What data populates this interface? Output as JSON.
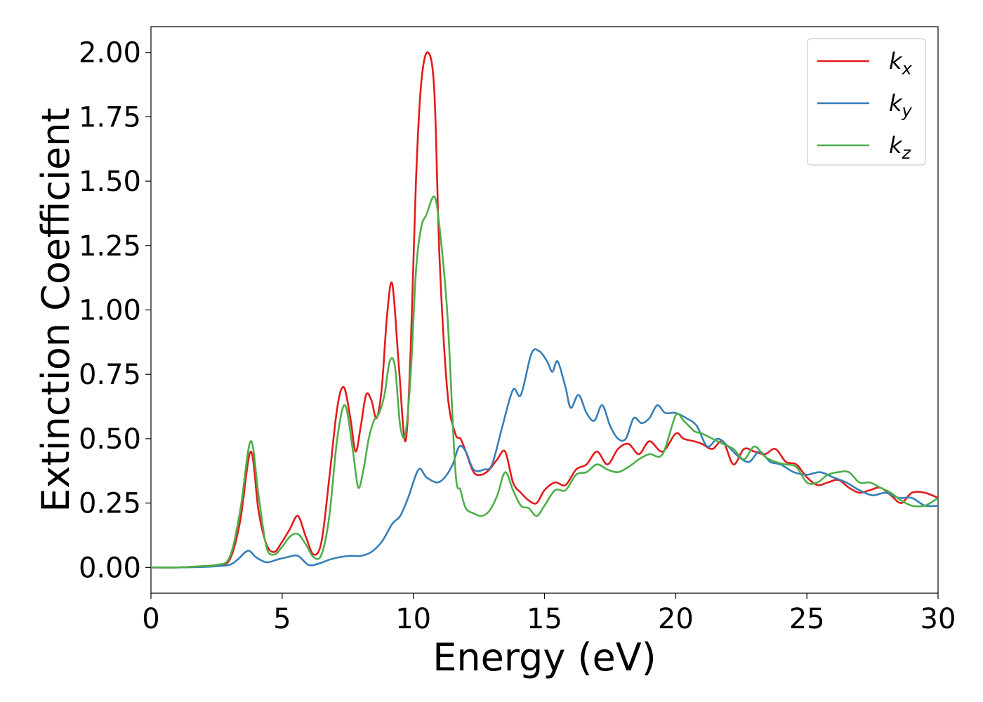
{
  "chart_data": {
    "type": "line",
    "title": "",
    "xlabel": "Energy (eV)",
    "ylabel": "Extinction Coefficient",
    "xlim": [
      0,
      30
    ],
    "ylim": [
      -0.1,
      2.1
    ],
    "xticks": [
      0,
      5,
      10,
      15,
      20,
      25,
      30
    ],
    "xtick_labels": [
      "0",
      "5",
      "10",
      "15",
      "20",
      "25",
      "30"
    ],
    "yticks": [
      0.0,
      0.25,
      0.5,
      0.75,
      1.0,
      1.25,
      1.5,
      1.75,
      2.0
    ],
    "ytick_labels": [
      "0.00",
      "0.25",
      "0.50",
      "0.75",
      "1.00",
      "1.25",
      "1.50",
      "1.75",
      "2.00"
    ],
    "grid": false,
    "legend_position": "top-right",
    "series": [
      {
        "name": "k",
        "subscript": "x",
        "color": "#e41a1c",
        "x": [
          0,
          1,
          2,
          2.5,
          3.0,
          3.4,
          3.8,
          4.1,
          4.4,
          4.7,
          5.0,
          5.3,
          5.6,
          5.9,
          6.2,
          6.5,
          6.8,
          7.1,
          7.35,
          7.6,
          7.8,
          8.0,
          8.2,
          8.4,
          8.6,
          8.8,
          9.0,
          9.2,
          9.45,
          9.7,
          9.9,
          10.1,
          10.3,
          10.55,
          10.8,
          11.0,
          11.3,
          11.6,
          11.8,
          12.0,
          12.3,
          12.6,
          12.9,
          13.2,
          13.5,
          13.8,
          14.1,
          14.4,
          14.7,
          15.0,
          15.4,
          15.8,
          16.2,
          16.6,
          17.0,
          17.4,
          17.8,
          18.2,
          18.6,
          19.0,
          19.5,
          20.0,
          20.3,
          20.7,
          21.0,
          21.4,
          21.8,
          22.2,
          22.6,
          23.0,
          23.4,
          23.8,
          24.2,
          24.6,
          25.0,
          25.4,
          25.8,
          26.2,
          26.6,
          27.0,
          27.4,
          27.8,
          28.2,
          28.6,
          29.0,
          29.5,
          30.0
        ],
        "y": [
          0.0,
          0.0,
          0.005,
          0.01,
          0.03,
          0.18,
          0.45,
          0.22,
          0.09,
          0.06,
          0.1,
          0.15,
          0.2,
          0.12,
          0.05,
          0.1,
          0.35,
          0.62,
          0.7,
          0.58,
          0.45,
          0.55,
          0.67,
          0.65,
          0.58,
          0.7,
          0.98,
          1.1,
          0.78,
          0.49,
          0.85,
          1.5,
          1.88,
          2.0,
          1.85,
          1.2,
          0.68,
          0.52,
          0.5,
          0.45,
          0.37,
          0.36,
          0.38,
          0.42,
          0.45,
          0.33,
          0.29,
          0.26,
          0.25,
          0.3,
          0.33,
          0.32,
          0.38,
          0.4,
          0.45,
          0.4,
          0.46,
          0.48,
          0.44,
          0.49,
          0.45,
          0.52,
          0.5,
          0.49,
          0.48,
          0.46,
          0.49,
          0.4,
          0.46,
          0.45,
          0.44,
          0.46,
          0.41,
          0.4,
          0.35,
          0.32,
          0.33,
          0.34,
          0.31,
          0.29,
          0.3,
          0.31,
          0.28,
          0.25,
          0.29,
          0.29,
          0.27
        ]
      },
      {
        "name": "k",
        "subscript": "y",
        "color": "#377eb8",
        "x": [
          0,
          1,
          2,
          2.5,
          3.0,
          3.3,
          3.7,
          4.0,
          4.4,
          4.8,
          5.2,
          5.6,
          6.0,
          6.4,
          6.8,
          7.2,
          7.6,
          8.0,
          8.4,
          8.8,
          9.2,
          9.5,
          9.8,
          10.2,
          10.5,
          10.9,
          11.2,
          11.5,
          11.75,
          12.0,
          12.3,
          12.7,
          13.0,
          13.4,
          13.8,
          14.1,
          14.5,
          14.8,
          15.1,
          15.3,
          15.5,
          15.8,
          16.0,
          16.3,
          16.6,
          16.9,
          17.2,
          17.5,
          17.8,
          18.1,
          18.4,
          18.7,
          19.0,
          19.3,
          19.6,
          20.0,
          20.4,
          20.8,
          21.2,
          21.6,
          22.0,
          22.4,
          22.8,
          23.2,
          23.6,
          24.0,
          24.5,
          25.0,
          25.5,
          26.0,
          26.5,
          27.0,
          27.5,
          28.0,
          28.5,
          29.0,
          29.5,
          30.0
        ],
        "y": [
          0.0,
          0.0,
          0.002,
          0.005,
          0.01,
          0.03,
          0.065,
          0.04,
          0.02,
          0.03,
          0.04,
          0.045,
          0.01,
          0.015,
          0.03,
          0.04,
          0.045,
          0.045,
          0.06,
          0.1,
          0.17,
          0.2,
          0.27,
          0.38,
          0.35,
          0.33,
          0.35,
          0.4,
          0.47,
          0.45,
          0.38,
          0.38,
          0.4,
          0.55,
          0.69,
          0.67,
          0.83,
          0.84,
          0.8,
          0.76,
          0.8,
          0.7,
          0.62,
          0.67,
          0.6,
          0.57,
          0.63,
          0.55,
          0.5,
          0.5,
          0.58,
          0.56,
          0.58,
          0.63,
          0.6,
          0.6,
          0.58,
          0.55,
          0.47,
          0.5,
          0.47,
          0.43,
          0.41,
          0.45,
          0.41,
          0.4,
          0.37,
          0.36,
          0.37,
          0.35,
          0.33,
          0.3,
          0.28,
          0.29,
          0.27,
          0.27,
          0.24,
          0.24
        ]
      },
      {
        "name": "k",
        "subscript": "z",
        "color": "#4daf4a",
        "x": [
          0,
          1,
          2,
          2.5,
          3.0,
          3.4,
          3.8,
          4.1,
          4.4,
          4.7,
          5.0,
          5.3,
          5.6,
          5.9,
          6.2,
          6.5,
          6.8,
          7.1,
          7.4,
          7.7,
          7.9,
          8.1,
          8.3,
          8.5,
          8.7,
          8.9,
          9.1,
          9.3,
          9.5,
          9.7,
          9.9,
          10.1,
          10.3,
          10.5,
          10.8,
          11.0,
          11.3,
          11.6,
          11.8,
          12.0,
          12.3,
          12.6,
          12.9,
          13.2,
          13.5,
          13.8,
          14.1,
          14.4,
          14.7,
          15.0,
          15.4,
          15.8,
          16.2,
          16.6,
          17.0,
          17.4,
          17.8,
          18.2,
          18.6,
          19.0,
          19.5,
          20.0,
          20.3,
          20.7,
          21.0,
          21.4,
          21.8,
          22.2,
          22.6,
          23.0,
          23.4,
          23.8,
          24.2,
          24.6,
          25.0,
          25.4,
          25.8,
          26.2,
          26.6,
          27.0,
          27.4,
          27.8,
          28.2,
          28.6,
          29.0,
          29.5,
          30.0
        ],
        "y": [
          0.0,
          0.0,
          0.005,
          0.01,
          0.04,
          0.22,
          0.49,
          0.28,
          0.08,
          0.05,
          0.08,
          0.12,
          0.13,
          0.09,
          0.04,
          0.05,
          0.2,
          0.5,
          0.63,
          0.45,
          0.31,
          0.38,
          0.5,
          0.57,
          0.6,
          0.67,
          0.8,
          0.78,
          0.55,
          0.52,
          0.75,
          1.15,
          1.32,
          1.37,
          1.44,
          1.32,
          0.98,
          0.38,
          0.3,
          0.23,
          0.21,
          0.2,
          0.22,
          0.28,
          0.37,
          0.3,
          0.24,
          0.23,
          0.2,
          0.24,
          0.3,
          0.3,
          0.36,
          0.37,
          0.4,
          0.38,
          0.37,
          0.39,
          0.42,
          0.44,
          0.44,
          0.59,
          0.57,
          0.53,
          0.52,
          0.5,
          0.48,
          0.46,
          0.42,
          0.47,
          0.43,
          0.41,
          0.4,
          0.39,
          0.33,
          0.33,
          0.36,
          0.37,
          0.37,
          0.33,
          0.33,
          0.31,
          0.29,
          0.26,
          0.24,
          0.24,
          0.27
        ]
      }
    ]
  }
}
